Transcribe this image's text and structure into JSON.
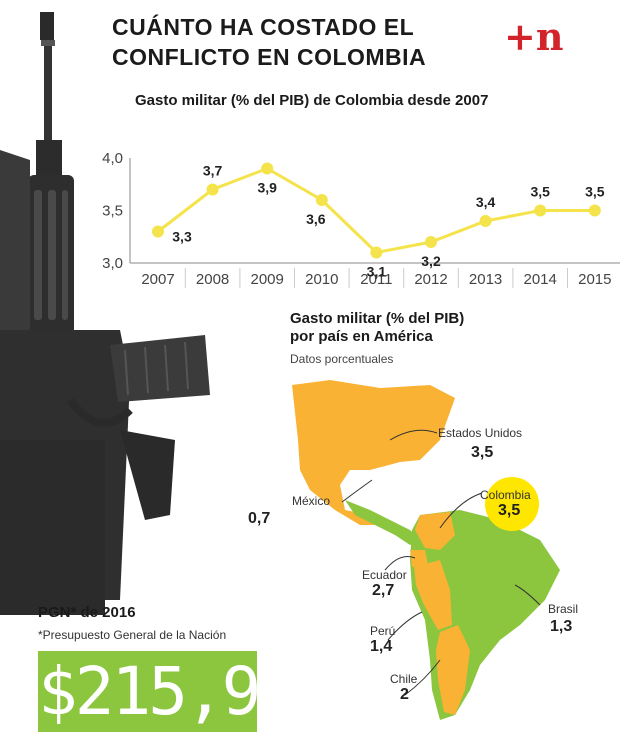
{
  "header": {
    "title_line1": "CUÁNTO HA COSTADO EL",
    "title_line2": "CONFLICTO EN COLOMBIA",
    "logo": "+n"
  },
  "colors": {
    "line": "#f5e34b",
    "marker": "#f5e34b",
    "map_orange": "#f9b233",
    "map_green": "#8cc63f",
    "highlight": "#ffe600",
    "pgn_green": "#8cc63f",
    "logo_red": "#d2232a"
  },
  "chart_data": [
    {
      "type": "line",
      "title": "Gasto militar (% del PIB) de Colombia desde 2007",
      "x": [
        "2007",
        "2008",
        "2009",
        "2010",
        "2011",
        "2012",
        "2013",
        "2014",
        "2015"
      ],
      "values": [
        3.3,
        3.7,
        3.9,
        3.6,
        3.1,
        3.2,
        3.4,
        3.5,
        3.5
      ],
      "data_labels": [
        "3,3",
        "3,7",
        "3,9",
        "3,6",
        "3,1",
        "3,2",
        "3,4",
        "3,5",
        "3,5"
      ],
      "yticks": [
        "3,0",
        "3,5",
        "4,0"
      ],
      "ytick_values": [
        3.0,
        3.5,
        4.0
      ],
      "ylim": [
        3.0,
        4.0
      ],
      "grid": false
    },
    {
      "type": "map",
      "title_line1": "Gasto militar (% del PIB)",
      "title_line2": "por país en América",
      "subtitle": "Datos porcentuales",
      "countries": [
        {
          "name": "Estados Unidos",
          "value": "3,5"
        },
        {
          "name": "México",
          "value": "0,7"
        },
        {
          "name": "Colombia",
          "value": "3,5"
        },
        {
          "name": "Ecuador",
          "value": "2,7"
        },
        {
          "name": "Brasil",
          "value": "1,3"
        },
        {
          "name": "Perú",
          "value": "1,4"
        },
        {
          "name": "Chile",
          "value": "2"
        }
      ]
    }
  ],
  "pgn": {
    "title": "PGN* de 2016",
    "footnote": "*Presupuesto General de la Nación",
    "value": "$215,9"
  }
}
